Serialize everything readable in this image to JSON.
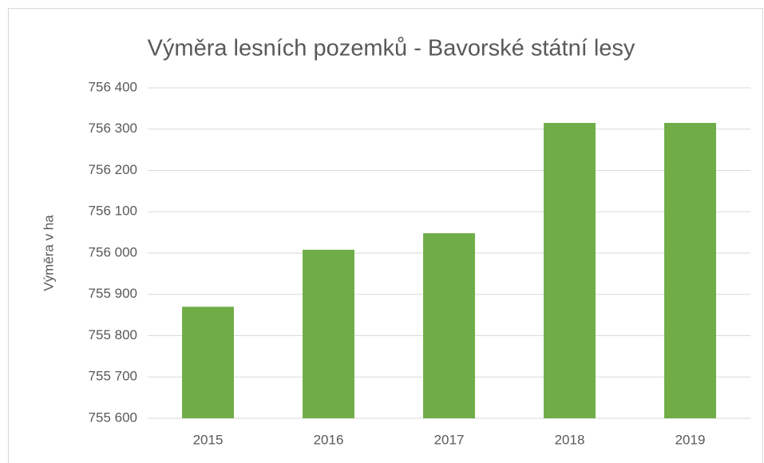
{
  "chart_data": {
    "type": "bar",
    "title": "Výměra lesních pozemků - Bavorské státní lesy",
    "y_label": "Výměra v ha",
    "categories": [
      "2015",
      "2016",
      "2017",
      "2018",
      "2019"
    ],
    "values": [
      755870,
      756008,
      756048,
      756315,
      756315
    ],
    "color": "#70ad47",
    "ylim": [
      755600,
      756400
    ],
    "yticks": [
      {
        "value": 755600,
        "label": "755 600"
      },
      {
        "value": 755700,
        "label": "755 700"
      },
      {
        "value": 755800,
        "label": "755 800"
      },
      {
        "value": 755900,
        "label": "755 900"
      },
      {
        "value": 756000,
        "label": "756 000"
      },
      {
        "value": 756100,
        "label": "756 100"
      },
      {
        "value": 756200,
        "label": "756 200"
      },
      {
        "value": 756300,
        "label": "756 300"
      },
      {
        "value": 756400,
        "label": "756 400"
      }
    ],
    "grid": true
  }
}
